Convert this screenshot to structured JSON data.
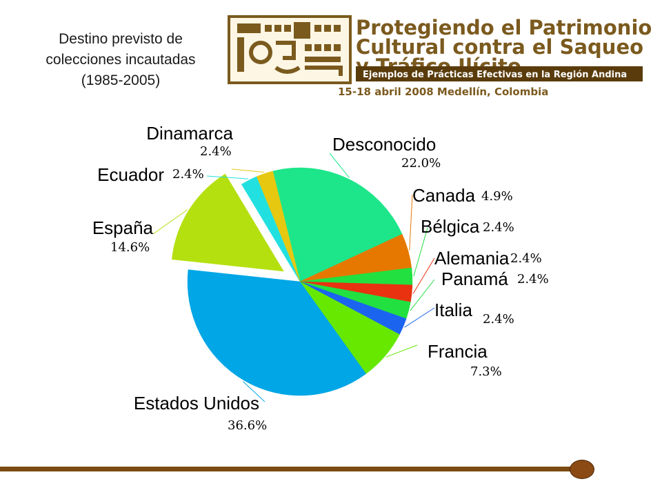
{
  "title": {
    "line1": "Destino previsto de",
    "line2": "colecciones incautadas",
    "line3": "(1985-2005)"
  },
  "banner": {
    "line1": "Protegiendo el Patrimonio",
    "line2": "Cultural contra el Saqueo",
    "line3": "y Tráfico Ilícito",
    "subtitle": "Ejemplos de Prácticas Efectivas en la Región Andina",
    "event": "15-18 abril 2008 Medellín, Colombia",
    "colors": {
      "brown": "#7b5a1e",
      "dark_brown": "#5a3c0c"
    }
  },
  "chart_data": {
    "type": "pie",
    "slices": [
      {
        "name": "Desconocido",
        "value": 22.0,
        "label": "22.0%",
        "color": "#1de68a",
        "exploded": false
      },
      {
        "name": "Canada",
        "value": 4.9,
        "label": "4.9%",
        "color": "#e67800",
        "exploded": false
      },
      {
        "name": "Bélgica",
        "value": 2.4,
        "label": "2.4%",
        "color": "#22e040",
        "exploded": false
      },
      {
        "name": "Alemania",
        "value": 2.4,
        "label": "2.4%",
        "color": "#e83210",
        "exploded": false
      },
      {
        "name": "Panamá",
        "value": 2.4,
        "label": "2.4%",
        "color": "#22e040",
        "exploded": false
      },
      {
        "name": "Italia",
        "value": 2.4,
        "label": "2.4%",
        "color": "#1a64f0",
        "exploded": false
      },
      {
        "name": "Francia",
        "value": 7.3,
        "label": "7.3%",
        "color": "#66e800",
        "exploded": false
      },
      {
        "name": "Estados Unidos",
        "value": 36.6,
        "label": "36.6%",
        "color": "#00a6e6",
        "exploded": false
      },
      {
        "name": "España",
        "value": 14.6,
        "label": "14.6%",
        "color": "#b4e010",
        "exploded": true
      },
      {
        "name": "Ecuador",
        "value": 2.4,
        "label": "2.4%",
        "color": "#22e0e0",
        "exploded": false
      },
      {
        "name": "Dinamarca",
        "value": 2.4,
        "label": "2.4%",
        "color": "#e6c810",
        "exploded": false
      }
    ]
  },
  "footer": {
    "line_color": "#7b4a12"
  }
}
